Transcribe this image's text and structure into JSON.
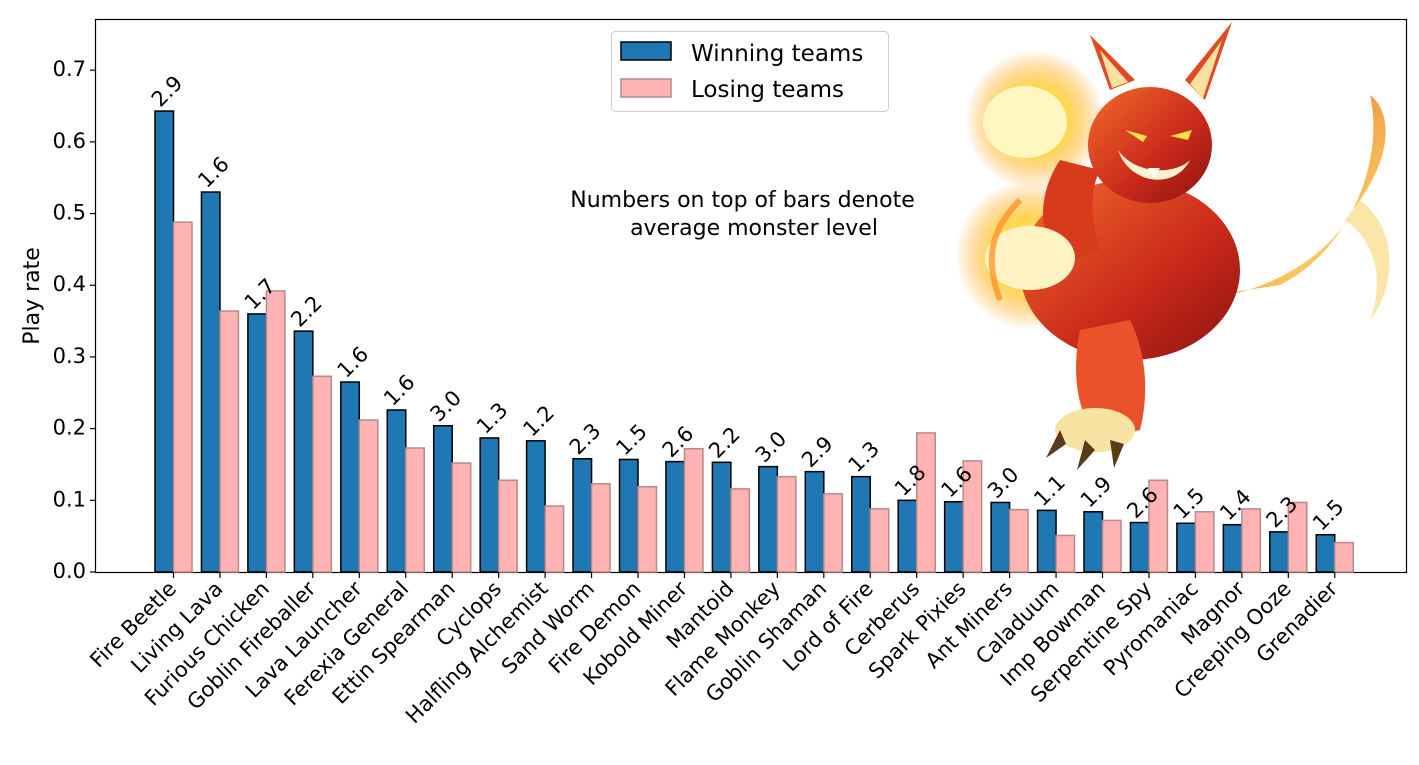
{
  "chart_data": {
    "type": "bar",
    "categories": [
      "Fire Beetle",
      "Living Lava",
      "Furious Chicken",
      "Goblin Fireballer",
      "Lava Launcher",
      "Ferexia General",
      "Ettin Spearman",
      "Cyclops",
      "Halfling Alchemist",
      "Sand Worm",
      "Fire Demon",
      "Kobold Miner",
      "Mantoid",
      "Flame Monkey",
      "Goblin Shaman",
      "Lord of Fire",
      "Cerberus",
      "Spark Pixies",
      "Ant Miners",
      "Caladuum",
      "Imp Bowman",
      "Serpentine Spy",
      "Pyromaniac",
      "Magnor",
      "Creeping Ooze",
      "Grenadier"
    ],
    "series": [
      {
        "name": "Winning teams",
        "color": "#1f77b4",
        "values": [
          0.643,
          0.53,
          0.36,
          0.336,
          0.265,
          0.226,
          0.204,
          0.187,
          0.183,
          0.158,
          0.157,
          0.154,
          0.153,
          0.147,
          0.14,
          0.133,
          0.1,
          0.098,
          0.097,
          0.086,
          0.084,
          0.069,
          0.068,
          0.066,
          0.056,
          0.052
        ]
      },
      {
        "name": "Losing teams",
        "color": "#ffb3b3",
        "values": [
          0.488,
          0.364,
          0.392,
          0.273,
          0.212,
          0.173,
          0.152,
          0.128,
          0.092,
          0.123,
          0.119,
          0.172,
          0.116,
          0.133,
          0.109,
          0.088,
          0.194,
          0.155,
          0.087,
          0.051,
          0.072,
          0.128,
          0.084,
          0.088,
          0.097,
          0.041
        ]
      }
    ],
    "bar_labels": [
      "2.9",
      "1.6",
      "1.7",
      "2.2",
      "1.6",
      "1.6",
      "3.0",
      "1.3",
      "1.2",
      "2.3",
      "1.5",
      "2.6",
      "2.2",
      "3.0",
      "2.9",
      "1.3",
      "1.8",
      "1.6",
      "3.0",
      "1.1",
      "1.9",
      "2.6",
      "1.5",
      "1.4",
      "2.3",
      "1.5"
    ],
    "xlabel": "",
    "ylabel": "Play rate",
    "ylim": [
      0,
      0.77
    ],
    "yticks": [
      "0.0",
      "0.1",
      "0.2",
      "0.3",
      "0.4",
      "0.5",
      "0.6",
      "0.7"
    ],
    "legend_placement": "top-center",
    "annotation": [
      "Numbers on top of bars denote",
      "average monster level"
    ],
    "grid": false
  },
  "decoration": {
    "icon": "fire-monkey-illustration-icon"
  }
}
